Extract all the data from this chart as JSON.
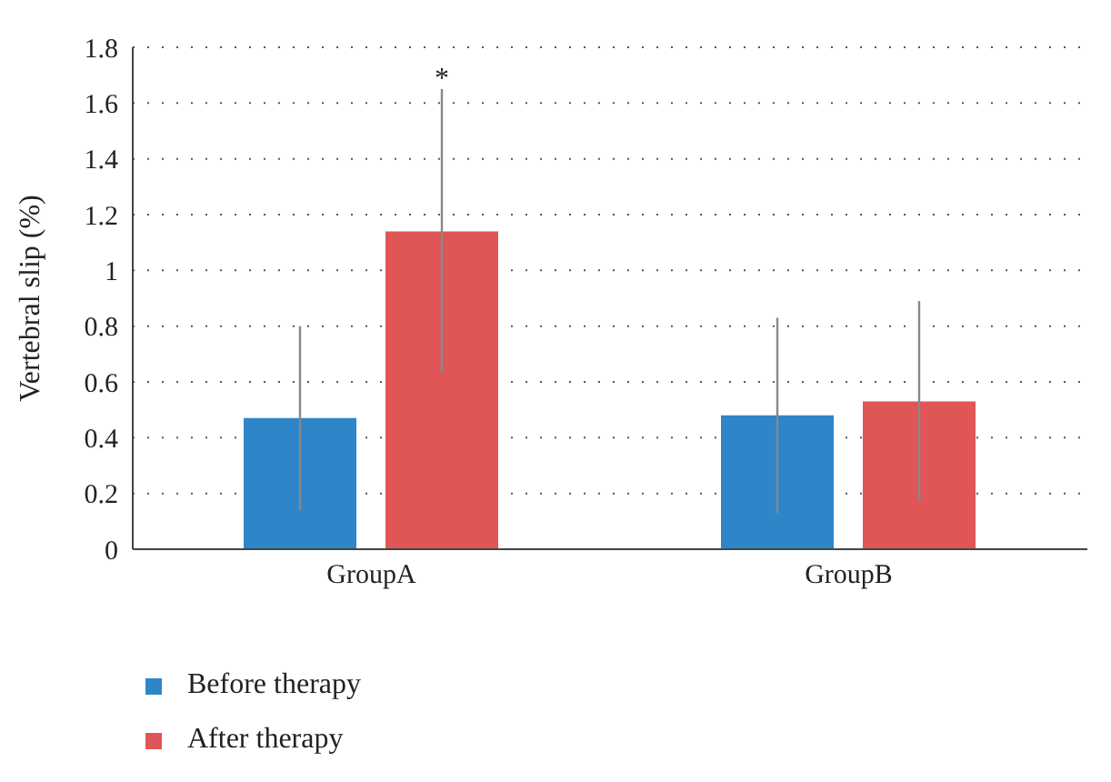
{
  "chart_data": {
    "type": "bar",
    "ylabel": "Vertebral slip (%)",
    "categories": [
      "GroupA",
      "GroupB"
    ],
    "series": [
      {
        "name": "Before therapy",
        "color": "#2e86c8",
        "values": [
          0.47,
          0.48
        ],
        "errors": [
          0.33,
          0.35
        ]
      },
      {
        "name": "After therapy",
        "color": "#e05555",
        "values": [
          1.14,
          0.53
        ],
        "errors": [
          0.51,
          0.36
        ]
      }
    ],
    "ylim": [
      0,
      1.8
    ],
    "yticks": [
      0,
      0.2,
      0.4,
      0.6,
      0.8,
      1,
      1.2,
      1.4,
      1.6,
      1.8
    ],
    "grid": "y",
    "legend": "bottom left",
    "annotations": [
      "*"
    ]
  }
}
